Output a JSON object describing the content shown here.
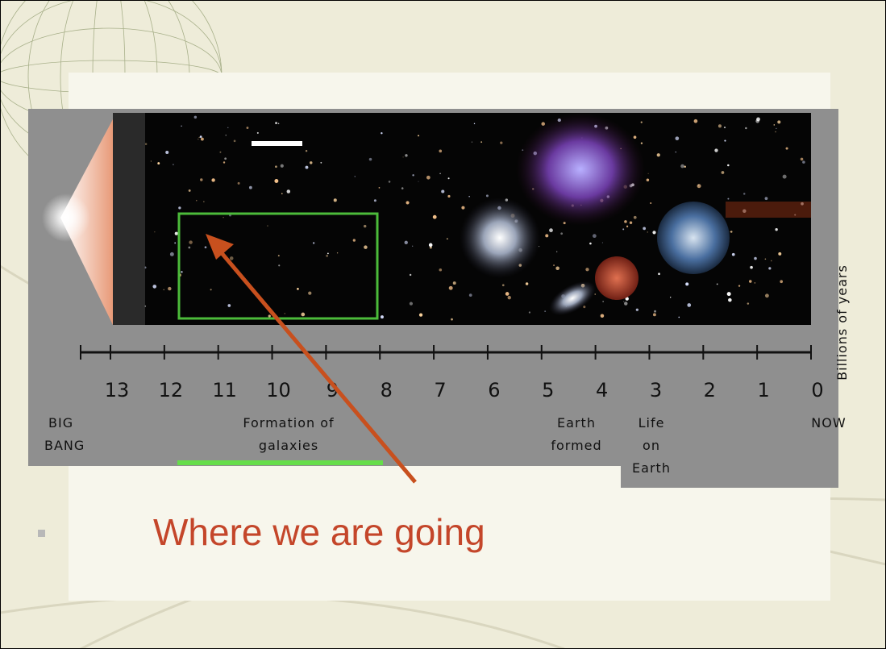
{
  "timeline": {
    "ticks": [
      "13",
      "12",
      "11",
      "10",
      "9",
      "8",
      "7",
      "6",
      "5",
      "4",
      "3",
      "2",
      "1",
      "0"
    ],
    "unit": "Billions of years"
  },
  "labels": {
    "big_bang": [
      "BIG",
      "BANG"
    ],
    "galaxies": [
      "Formation of",
      "galaxies"
    ],
    "earth": [
      "Earth",
      "formed"
    ],
    "life": [
      "Life",
      "on",
      "Earth"
    ],
    "now": "NOW"
  },
  "heading": "Where we are going"
}
